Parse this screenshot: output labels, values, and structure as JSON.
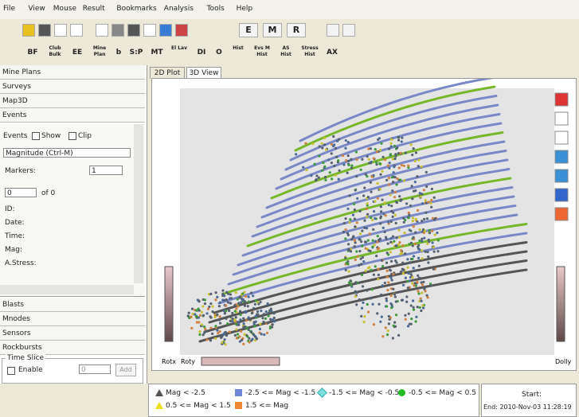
{
  "menu": [
    "File",
    "View",
    "Mouse",
    "Result",
    "Bookmarks",
    "Analysis",
    "Tools",
    "Help"
  ],
  "toolbar": {
    "legend_buttons": [
      "E",
      "M",
      "R"
    ],
    "buttons": [
      "BF",
      "Club Bulk",
      "EE",
      "Mine Plan",
      "b",
      "S:P",
      "MT",
      "El Lav",
      "DI",
      "O",
      "Hist",
      "Evs M Hist",
      "AS Hist",
      "Stress Hist",
      "AX"
    ]
  },
  "left_panel": {
    "sections_top": [
      "Mine Plans",
      "Surveys",
      "Map3D",
      "Events"
    ],
    "events": {
      "events_label": "Events",
      "show": "Show",
      "clip": "Clip",
      "magnitude": "Magnitude (Ctrl-M)",
      "markers": "Markers:",
      "markers_value": "1",
      "index": "0",
      "of": "of 0",
      "fields": [
        "ID:",
        "Date:",
        "Time:",
        "Mag:",
        "A.Stress:"
      ]
    },
    "sections_bottom": [
      "Blasts",
      "Mnodes",
      "Sensors",
      "Rockbursts"
    ],
    "time_slice": {
      "title": "Time Slice",
      "enable": "Enable",
      "value": "0",
      "add": "Add"
    }
  },
  "tabs": [
    "2D Plot",
    "3D View"
  ],
  "view": {
    "rot_x": "Rotx",
    "rot_y": "Roty",
    "dolly": "Dolly"
  },
  "legend": [
    {
      "label": "Mag < -2.5",
      "color": "#555555",
      "shape": "triangle"
    },
    {
      "label": "-2.5 <= Mag < -1.5",
      "color": "#6f86d6",
      "shape": "square"
    },
    {
      "label": "-1.5 <= Mag < -0.5",
      "color": "#7fe0e0",
      "shape": "diamond"
    },
    {
      "label": "-0.5 <= Mag < 0.5",
      "color": "#22bb22",
      "shape": "circle"
    },
    {
      "label": "0.5 <= Mag < 1.5",
      "color": "#e8e020",
      "shape": "triangle"
    },
    {
      "label": "1.5 <= Mag",
      "color": "#ee8833",
      "shape": "square"
    }
  ],
  "status": {
    "start": "Start:",
    "end": "End: 2010-Nov-03 11:28:19"
  }
}
